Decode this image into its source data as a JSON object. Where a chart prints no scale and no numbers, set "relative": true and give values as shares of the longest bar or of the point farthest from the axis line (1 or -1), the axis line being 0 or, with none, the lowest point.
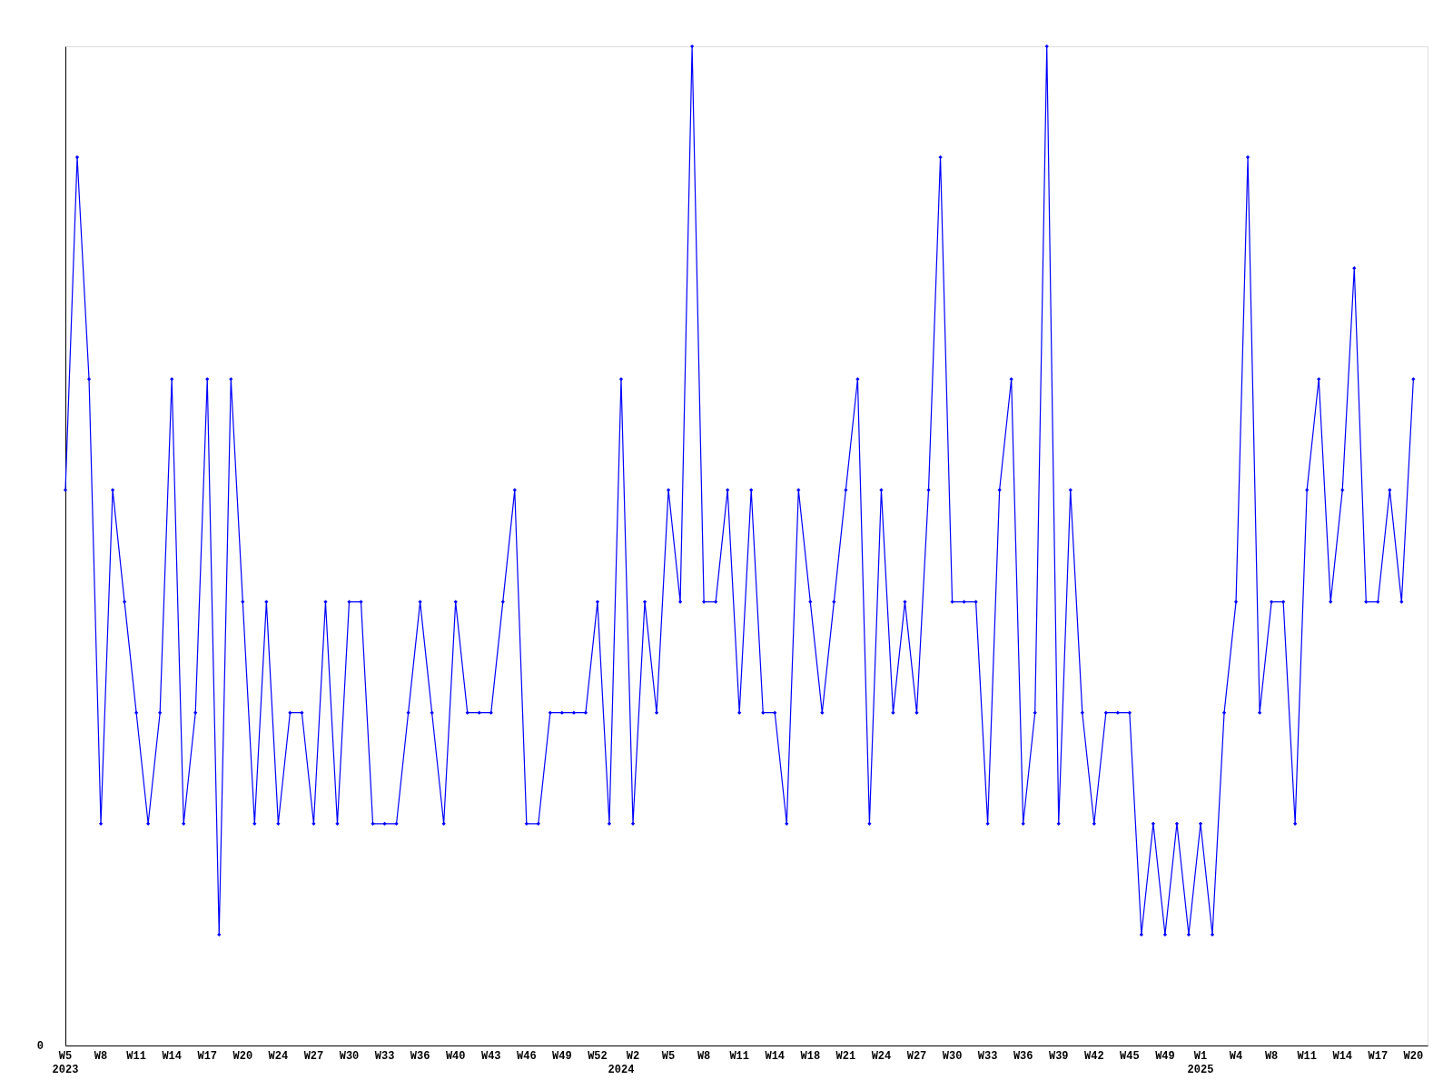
{
  "chart_data": {
    "type": "line",
    "relative": true,
    "marker": "diamond",
    "line_style": "solid",
    "grid": false,
    "annotations": [
      "0"
    ],
    "categories": [
      "W5\n2023",
      null,
      null,
      "W8",
      null,
      null,
      "W11",
      null,
      null,
      "W14",
      null,
      null,
      "W17",
      null,
      null,
      "W20",
      null,
      null,
      "W24",
      null,
      null,
      "W27",
      null,
      null,
      "W30",
      null,
      null,
      "W33",
      null,
      null,
      "W36",
      null,
      null,
      "W40",
      null,
      null,
      "W43",
      null,
      null,
      "W46",
      null,
      null,
      "W49",
      null,
      null,
      "W52",
      null,
      "\n2024",
      "W2",
      null,
      null,
      "W5",
      null,
      null,
      "W8",
      null,
      null,
      "W11",
      null,
      null,
      "W14",
      null,
      null,
      "W18",
      null,
      null,
      "W21",
      null,
      null,
      "W24",
      null,
      null,
      "W27",
      null,
      null,
      "W30",
      null,
      null,
      "W33",
      null,
      null,
      "W36",
      null,
      null,
      "W39",
      null,
      null,
      "W42",
      null,
      null,
      "W45",
      null,
      null,
      "W49",
      null,
      null,
      "W1\n2025",
      null,
      null,
      "W4",
      null,
      null,
      "W8",
      null,
      null,
      "W11",
      null,
      null,
      "W14",
      null,
      null,
      "W17",
      null,
      null,
      "W20"
    ],
    "series": [
      {
        "color": "#0000ff",
        "values": [
          0.556,
          0.889,
          0.667,
          0.222,
          0.556,
          0.444,
          0.333,
          0.222,
          0.333,
          0.667,
          0.222,
          0.333,
          0.667,
          0.111,
          0.667,
          0.444,
          0.222,
          0.444,
          0.222,
          0.333,
          0.333,
          0.222,
          0.444,
          0.222,
          0.444,
          0.444,
          0.222,
          0.222,
          0.222,
          0.333,
          0.444,
          0.333,
          0.222,
          0.444,
          0.333,
          0.333,
          0.333,
          0.444,
          0.556,
          0.222,
          0.222,
          0.333,
          0.333,
          0.333,
          0.333,
          0.444,
          0.222,
          0.667,
          0.222,
          0.444,
          0.333,
          0.556,
          0.444,
          1,
          0.444,
          0.444,
          0.556,
          0.333,
          0.556,
          0.333,
          0.333,
          0.222,
          0.556,
          0.444,
          0.333,
          0.444,
          0.556,
          0.667,
          0.222,
          0.556,
          0.333,
          0.444,
          0.333,
          0.556,
          0.889,
          0.444,
          0.444,
          0.444,
          0.222,
          0.556,
          0.667,
          0.222,
          0.333,
          1,
          0.222,
          0.556,
          0.333,
          0.222,
          0.333,
          0.333,
          0.333,
          0.111,
          0.222,
          0.111,
          0.222,
          0.111,
          0.222,
          0.111,
          0.333,
          0.444,
          0.889,
          0.333,
          0.444,
          0.444,
          0.222,
          0.556,
          0.667,
          0.444,
          0.556,
          0.778,
          0.444,
          0.444,
          0.556,
          0.444,
          0.667
        ]
      }
    ]
  }
}
